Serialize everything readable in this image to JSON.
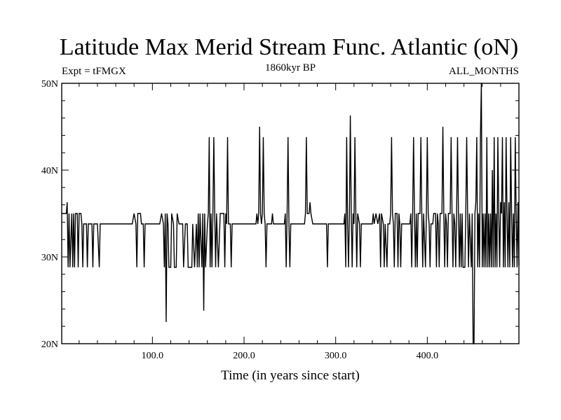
{
  "chart_data": {
    "type": "line",
    "title": "Latitude Max Merid Stream Func. Atlantic (oN)",
    "subtitle_left": "Expt = tFMGX",
    "subtitle_center": "1860kyr BP",
    "subtitle_right": "ALL_MONTHS",
    "xlabel": "Time (in years since start)",
    "ylabel": "",
    "xlim": [
      1,
      500
    ],
    "ylim": [
      20,
      50
    ],
    "x_ticks": [
      {
        "value": 100,
        "label": "100.0"
      },
      {
        "value": 200,
        "label": "200.0"
      },
      {
        "value": 300,
        "label": "300.0"
      },
      {
        "value": 400,
        "label": "400.0"
      }
    ],
    "y_ticks": [
      {
        "value": 20,
        "label": "20N"
      },
      {
        "value": 30,
        "label": "30N"
      },
      {
        "value": 40,
        "label": "40N"
      },
      {
        "value": 50,
        "label": "50N"
      }
    ],
    "grid": false,
    "line_color": "#000000",
    "series": [
      {
        "points": [
          [
            1,
            35.0
          ],
          [
            6,
            35.0
          ],
          [
            7,
            36.3
          ],
          [
            8,
            28.8
          ],
          [
            9,
            35.0
          ],
          [
            10,
            28.8
          ],
          [
            12,
            35.0
          ],
          [
            13,
            28.8
          ],
          [
            14,
            35.0
          ],
          [
            15,
            28.8
          ],
          [
            16,
            35.0
          ],
          [
            18,
            35.0
          ],
          [
            19,
            28.8
          ],
          [
            20,
            35.0
          ],
          [
            22,
            35.0
          ],
          [
            23,
            33.8
          ],
          [
            24,
            28.8
          ],
          [
            25,
            33.8
          ],
          [
            28,
            33.8
          ],
          [
            29,
            28.8
          ],
          [
            30,
            33.8
          ],
          [
            34,
            33.8
          ],
          [
            35,
            28.8
          ],
          [
            36,
            33.8
          ],
          [
            40,
            33.8
          ],
          [
            42,
            28.8
          ],
          [
            43,
            33.8
          ],
          [
            78,
            33.8
          ],
          [
            80,
            35.0
          ],
          [
            82,
            33.8
          ],
          [
            83,
            28.8
          ],
          [
            84,
            35.0
          ],
          [
            87,
            35.0
          ],
          [
            88,
            33.8
          ],
          [
            90,
            33.8
          ],
          [
            91,
            28.8
          ],
          [
            92,
            33.8
          ],
          [
            108,
            33.8
          ],
          [
            110,
            35.0
          ],
          [
            112,
            33.8
          ],
          [
            113,
            28.8
          ],
          [
            114,
            35.0
          ],
          [
            115,
            22.5
          ],
          [
            116,
            35.0
          ],
          [
            117,
            33.8
          ],
          [
            118,
            28.8
          ],
          [
            120,
            28.8
          ],
          [
            121,
            35.0
          ],
          [
            123,
            33.8
          ],
          [
            124,
            28.8
          ],
          [
            126,
            28.8
          ],
          [
            127,
            35.0
          ],
          [
            129,
            33.8
          ],
          [
            133,
            33.8
          ],
          [
            134,
            28.8
          ],
          [
            136,
            33.8
          ],
          [
            138,
            33.8
          ],
          [
            139,
            28.8
          ],
          [
            143,
            28.8
          ],
          [
            144,
            33.8
          ],
          [
            146,
            28.8
          ],
          [
            148,
            33.8
          ],
          [
            149,
            28.8
          ],
          [
            150,
            35.0
          ],
          [
            151,
            28.8
          ],
          [
            152,
            35.0
          ],
          [
            154,
            28.8
          ],
          [
            155,
            35.0
          ],
          [
            156,
            23.8
          ],
          [
            157,
            35.0
          ],
          [
            158,
            28.8
          ],
          [
            160,
            33.8
          ],
          [
            161,
            35.0
          ],
          [
            162,
            43.8
          ],
          [
            163,
            28.8
          ],
          [
            164,
            35.0
          ],
          [
            165,
            28.8
          ],
          [
            166,
            35.0
          ],
          [
            167,
            43.8
          ],
          [
            168,
            35.0
          ],
          [
            169,
            28.8
          ],
          [
            170,
            35.0
          ],
          [
            172,
            28.8
          ],
          [
            174,
            35.0
          ],
          [
            178,
            35.0
          ],
          [
            179,
            28.8
          ],
          [
            180,
            35.0
          ],
          [
            181,
            33.8
          ],
          [
            182,
            43.8
          ],
          [
            183,
            33.8
          ],
          [
            185,
            33.8
          ],
          [
            186,
            28.8
          ],
          [
            187,
            33.8
          ],
          [
            213,
            33.8
          ],
          [
            214,
            35.0
          ],
          [
            215,
            33.8
          ],
          [
            216,
            35.0
          ],
          [
            217,
            45.0
          ],
          [
            218,
            35.0
          ],
          [
            219,
            33.8
          ],
          [
            220,
            35.0
          ],
          [
            221,
            43.8
          ],
          [
            222,
            35.0
          ],
          [
            223,
            33.8
          ],
          [
            224,
            28.8
          ],
          [
            225,
            33.8
          ],
          [
            230,
            33.8
          ],
          [
            231,
            35.0
          ],
          [
            232,
            33.8
          ],
          [
            244,
            33.8
          ],
          [
            245,
            35.0
          ],
          [
            246,
            28.8
          ],
          [
            247,
            35.0
          ],
          [
            248,
            43.8
          ],
          [
            249,
            33.8
          ],
          [
            250,
            28.8
          ],
          [
            251,
            33.8
          ],
          [
            266,
            33.8
          ],
          [
            267,
            35.0
          ],
          [
            268,
            43.8
          ],
          [
            269,
            35.0
          ],
          [
            271,
            35.0
          ],
          [
            272,
            36.3
          ],
          [
            273,
            35.0
          ],
          [
            275,
            33.8
          ],
          [
            290,
            33.8
          ],
          [
            291,
            28.8
          ],
          [
            292,
            33.8
          ],
          [
            309,
            33.8
          ],
          [
            310,
            35.0
          ],
          [
            311,
            28.8
          ],
          [
            312,
            43.8
          ],
          [
            313,
            33.8
          ],
          [
            314,
            28.8
          ],
          [
            315,
            35.0
          ],
          [
            316,
            46.3
          ],
          [
            317,
            35.0
          ],
          [
            318,
            28.8
          ],
          [
            319,
            35.0
          ],
          [
            320,
            33.8
          ],
          [
            321,
            43.8
          ],
          [
            322,
            35.0
          ],
          [
            323,
            28.8
          ],
          [
            324,
            35.0
          ],
          [
            326,
            33.8
          ],
          [
            327,
            28.8
          ],
          [
            328,
            33.8
          ],
          [
            340,
            33.8
          ],
          [
            341,
            35.0
          ],
          [
            342,
            33.8
          ],
          [
            344,
            35.0
          ],
          [
            346,
            33.8
          ],
          [
            348,
            35.0
          ],
          [
            349,
            28.8
          ],
          [
            350,
            35.0
          ],
          [
            352,
            33.8
          ],
          [
            353,
            28.8
          ],
          [
            354,
            33.8
          ],
          [
            356,
            28.8
          ],
          [
            357,
            33.8
          ],
          [
            359,
            33.8
          ],
          [
            360,
            35.0
          ],
          [
            361,
            43.8
          ],
          [
            362,
            35.0
          ],
          [
            363,
            33.8
          ],
          [
            364,
            28.8
          ],
          [
            365,
            35.0
          ],
          [
            367,
            35.0
          ],
          [
            368,
            28.8
          ],
          [
            369,
            35.0
          ],
          [
            370,
            33.8
          ],
          [
            371,
            28.8
          ],
          [
            372,
            33.8
          ],
          [
            381,
            33.8
          ],
          [
            382,
            35.0
          ],
          [
            383,
            28.8
          ],
          [
            384,
            35.0
          ],
          [
            385,
            43.8
          ],
          [
            386,
            35.0
          ],
          [
            387,
            28.8
          ],
          [
            388,
            35.0
          ],
          [
            389,
            28.8
          ],
          [
            390,
            35.0
          ],
          [
            392,
            35.0
          ],
          [
            393,
            43.8
          ],
          [
            394,
            35.0
          ],
          [
            395,
            28.8
          ],
          [
            396,
            35.0
          ],
          [
            398,
            28.8
          ],
          [
            399,
            35.0
          ],
          [
            400,
            43.8
          ],
          [
            401,
            35.0
          ],
          [
            402,
            33.8
          ],
          [
            403,
            28.8
          ],
          [
            404,
            33.8
          ],
          [
            406,
            33.8
          ],
          [
            407,
            35.0
          ],
          [
            409,
            35.0
          ],
          [
            410,
            28.8
          ],
          [
            411,
            35.0
          ],
          [
            412,
            33.8
          ],
          [
            413,
            28.8
          ],
          [
            414,
            35.0
          ],
          [
            416,
            35.0
          ],
          [
            417,
            45.0
          ],
          [
            418,
            35.0
          ],
          [
            419,
            28.8
          ],
          [
            420,
            35.0
          ],
          [
            421,
            33.8
          ],
          [
            422,
            28.8
          ],
          [
            423,
            35.0
          ],
          [
            425,
            35.0
          ],
          [
            426,
            43.8
          ],
          [
            427,
            35.0
          ],
          [
            428,
            28.8
          ],
          [
            429,
            35.0
          ],
          [
            430,
            33.8
          ],
          [
            431,
            28.8
          ],
          [
            432,
            35.0
          ],
          [
            433,
            43.8
          ],
          [
            434,
            35.0
          ],
          [
            435,
            28.8
          ],
          [
            436,
            35.0
          ],
          [
            437,
            28.8
          ],
          [
            438,
            35.0
          ],
          [
            439,
            28.8
          ],
          [
            441,
            28.8
          ],
          [
            442,
            35.0
          ],
          [
            443,
            43.8
          ],
          [
            444,
            35.0
          ],
          [
            445,
            28.8
          ],
          [
            446,
            35.0
          ],
          [
            448,
            28.8
          ],
          [
            449,
            35.0
          ],
          [
            450,
            20.0
          ],
          [
            451,
            20.0
          ],
          [
            452,
            35.0
          ],
          [
            453,
            36.3
          ],
          [
            454,
            43.8
          ],
          [
            455,
            28.8
          ],
          [
            456,
            35.0
          ],
          [
            457,
            28.8
          ],
          [
            458,
            43.8
          ],
          [
            459,
            50.0
          ],
          [
            460,
            28.8
          ],
          [
            461,
            35.0
          ],
          [
            462,
            28.8
          ],
          [
            463,
            35.0
          ],
          [
            464,
            28.8
          ],
          [
            465,
            43.8
          ],
          [
            466,
            28.8
          ],
          [
            467,
            35.0
          ],
          [
            468,
            28.8
          ],
          [
            469,
            35.0
          ],
          [
            470,
            28.8
          ],
          [
            471,
            40.0
          ],
          [
            472,
            28.8
          ],
          [
            473,
            43.8
          ],
          [
            474,
            28.8
          ],
          [
            475,
            35.0
          ],
          [
            476,
            28.8
          ],
          [
            477,
            43.8
          ],
          [
            478,
            35.0
          ],
          [
            479,
            28.8
          ],
          [
            480,
            36.3
          ],
          [
            481,
            35.0
          ],
          [
            482,
            43.8
          ],
          [
            483,
            28.8
          ],
          [
            484,
            36.3
          ],
          [
            485,
            28.8
          ],
          [
            486,
            43.8
          ],
          [
            487,
            35.0
          ],
          [
            488,
            28.8
          ],
          [
            489,
            36.3
          ],
          [
            490,
            28.8
          ],
          [
            491,
            43.8
          ],
          [
            492,
            35.0
          ],
          [
            493,
            28.8
          ],
          [
            494,
            35.0
          ],
          [
            495,
            28.8
          ],
          [
            496,
            43.8
          ],
          [
            497,
            35.0
          ],
          [
            498,
            28.8
          ],
          [
            499,
            36.3
          ],
          [
            500,
            29.0
          ]
        ]
      }
    ]
  }
}
